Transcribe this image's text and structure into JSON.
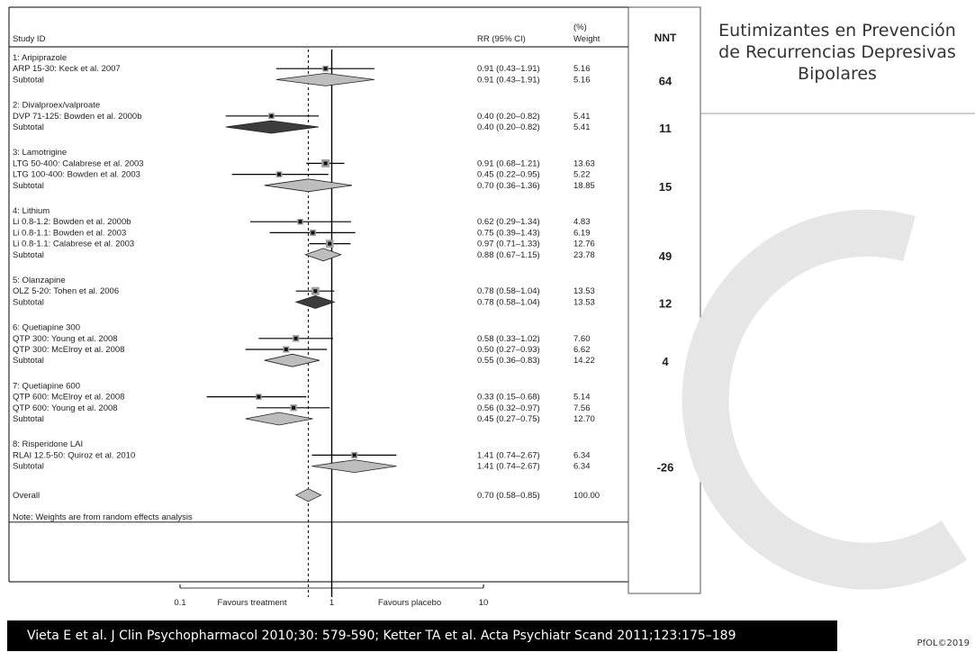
{
  "slide": {
    "title_lines": [
      "Eutimizantes en Prevención",
      "de Recurrencias Depresivas",
      "Bipolares"
    ],
    "citation": "Vieta E et al. J Clin Psychopharmacol 2010;30: 579-590; Ketter TA et al. Acta Psychiatr Scand 2011;123:175–189",
    "copyright": "PfOL©2019"
  },
  "colors": {
    "background": "#ffffff",
    "citation_bg": "#000000",
    "diamond_light": "#bdbdbd",
    "diamond_dark": "#3c3c3c",
    "line": "#000000"
  },
  "chart_data": {
    "type": "forest",
    "headers": {
      "study": "Study ID",
      "rr": "RR (95% CI)",
      "weight_pct": "(%)",
      "weight": "Weight",
      "nnt": "NNT"
    },
    "x_scale": "log",
    "xlim": [
      0.1,
      10
    ],
    "ticks": [
      {
        "value": 0.1,
        "label": "0.1"
      },
      {
        "value": 1,
        "label": "1"
      },
      {
        "value": 10,
        "label": "10"
      }
    ],
    "reference_line": 1,
    "overall_line": 0.7,
    "axis_labels": {
      "left": "Favours treatment",
      "right": "Favours placebo"
    },
    "note": "Note: Weights are from random effects analysis",
    "groups": [
      {
        "label": "1: Aripiprazole",
        "nnt": "64",
        "studies": [
          {
            "label": "ARP 15-30: Keck et al. 2007",
            "rr": 0.91,
            "lo": 0.43,
            "hi": 1.91,
            "ci": "0.91 (0.43–1.91)",
            "weight": "5.16"
          }
        ],
        "subtotal": {
          "label": "Subtotal",
          "rr": 0.91,
          "lo": 0.43,
          "hi": 1.91,
          "ci": "0.91 (0.43–1.91)",
          "weight": "5.16",
          "shade": "light"
        }
      },
      {
        "label": "2: Divalproex/valproate",
        "nnt": "11",
        "studies": [
          {
            "label": "DVP 71-125: Bowden et al. 2000b",
            "rr": 0.4,
            "lo": 0.2,
            "hi": 0.82,
            "ci": "0.40 (0.20–0.82)",
            "weight": "5.41"
          }
        ],
        "subtotal": {
          "label": "Subtotal",
          "rr": 0.4,
          "lo": 0.2,
          "hi": 0.82,
          "ci": "0.40 (0.20–0.82)",
          "weight": "5.41",
          "shade": "dark"
        }
      },
      {
        "label": "3: Lamotrigine",
        "nnt": "15",
        "studies": [
          {
            "label": "LTG 50-400: Calabrese et al. 2003",
            "rr": 0.91,
            "lo": 0.68,
            "hi": 1.21,
            "ci": "0.91 (0.68–1.21)",
            "weight": "13.63"
          },
          {
            "label": "LTG 100-400: Bowden et al. 2003",
            "rr": 0.45,
            "lo": 0.22,
            "hi": 0.95,
            "ci": "0.45 (0.22–0.95)",
            "weight": "5.22"
          }
        ],
        "subtotal": {
          "label": "Subtotal",
          "rr": 0.7,
          "lo": 0.36,
          "hi": 1.36,
          "ci": "0.70 (0.36–1.36)",
          "weight": "18.85",
          "shade": "light"
        }
      },
      {
        "label": "4: Lithium",
        "nnt": "49",
        "studies": [
          {
            "label": "Li 0.8-1.2: Bowden et al. 2000b",
            "rr": 0.62,
            "lo": 0.29,
            "hi": 1.34,
            "ci": "0.62 (0.29–1.34)",
            "weight": "4.83"
          },
          {
            "label": "Li 0.8-1.1: Bowden et al. 2003",
            "rr": 0.75,
            "lo": 0.39,
            "hi": 1.43,
            "ci": "0.75 (0.39–1.43)",
            "weight": "6.19"
          },
          {
            "label": "Li 0.8-1.1: Calabrese et al. 2003",
            "rr": 0.97,
            "lo": 0.71,
            "hi": 1.33,
            "ci": "0.97 (0.71–1.33)",
            "weight": "12.76"
          }
        ],
        "subtotal": {
          "label": "Subtotal",
          "rr": 0.88,
          "lo": 0.67,
          "hi": 1.15,
          "ci": "0.88 (0.67–1.15)",
          "weight": "23.78",
          "shade": "light"
        }
      },
      {
        "label": "5: Olanzapine",
        "nnt": "12",
        "studies": [
          {
            "label": "OLZ 5-20: Tohen et al. 2006",
            "rr": 0.78,
            "lo": 0.58,
            "hi": 1.04,
            "ci": "0.78 (0.58–1.04)",
            "weight": "13.53"
          }
        ],
        "subtotal": {
          "label": "Subtotal",
          "rr": 0.78,
          "lo": 0.58,
          "hi": 1.04,
          "ci": "0.78 (0.58–1.04)",
          "weight": "13.53",
          "shade": "dark"
        }
      },
      {
        "label": "6: Quetiapine 300",
        "nnt": "4",
        "studies": [
          {
            "label": "QTP 300: Young et al. 2008",
            "rr": 0.58,
            "lo": 0.33,
            "hi": 1.02,
            "ci": "0.58 (0.33–1.02)",
            "weight": "7.60"
          },
          {
            "label": "QTP 300: McElroy et al. 2008",
            "rr": 0.5,
            "lo": 0.27,
            "hi": 0.93,
            "ci": "0.50 (0.27–0.93)",
            "weight": "6.62"
          }
        ],
        "subtotal": {
          "label": "Subtotal",
          "rr": 0.55,
          "lo": 0.36,
          "hi": 0.83,
          "ci": "0.55 (0.36–0.83)",
          "weight": "14.22",
          "shade": "light"
        }
      },
      {
        "label": "7: Quetiapine 600",
        "nnt": "",
        "studies": [
          {
            "label": "QTP 600: McElroy et al. 2008",
            "rr": 0.33,
            "lo": 0.15,
            "hi": 0.68,
            "ci": "0.33 (0.15–0.68)",
            "weight": "5.14"
          },
          {
            "label": "QTP 600: Young et al. 2008",
            "rr": 0.56,
            "lo": 0.32,
            "hi": 0.97,
            "ci": "0.56 (0.32–0.97)",
            "weight": "7.56"
          }
        ],
        "subtotal": {
          "label": "Subtotal",
          "rr": 0.45,
          "lo": 0.27,
          "hi": 0.75,
          "ci": "0.45 (0.27–0.75)",
          "weight": "12.70",
          "shade": "light"
        }
      },
      {
        "label": "8: Risperidone LAI",
        "nnt": "-26",
        "studies": [
          {
            "label": "RLAI 12.5-50: Quiroz et al. 2010",
            "rr": 1.41,
            "lo": 0.74,
            "hi": 2.67,
            "ci": "1.41 (0.74–2.67)",
            "weight": "6.34"
          }
        ],
        "subtotal": {
          "label": "Subtotal",
          "rr": 1.41,
          "lo": 0.74,
          "hi": 2.67,
          "ci": "1.41 (0.74–2.67)",
          "weight": "6.34",
          "shade": "light"
        }
      }
    ],
    "overall": {
      "label": "Overall",
      "rr": 0.7,
      "lo": 0.58,
      "hi": 0.85,
      "ci": "0.70 (0.58–0.85)",
      "weight": "100.00",
      "shade": "light"
    }
  }
}
